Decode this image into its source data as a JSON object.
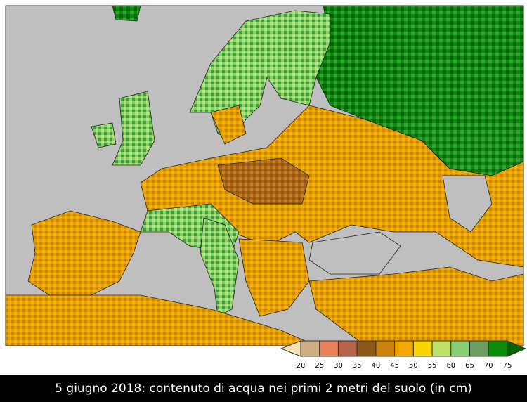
{
  "caption": "5 giugno 2018: contenuto di acqua nei primi 2 metri del suolo (in cm)",
  "legend": {
    "labels": [
      20,
      25,
      30,
      35,
      40,
      45,
      50,
      55,
      60,
      65,
      70,
      75
    ],
    "colors": [
      "#f3e3b0",
      "#cfae86",
      "#e8825a",
      "#b5654e",
      "#8a5818",
      "#c9820c",
      "#f2a800",
      "#f8d600",
      "#bde36a",
      "#86cf74",
      "#6c9e62",
      "#0a8c0a",
      "#006400"
    ]
  }
}
